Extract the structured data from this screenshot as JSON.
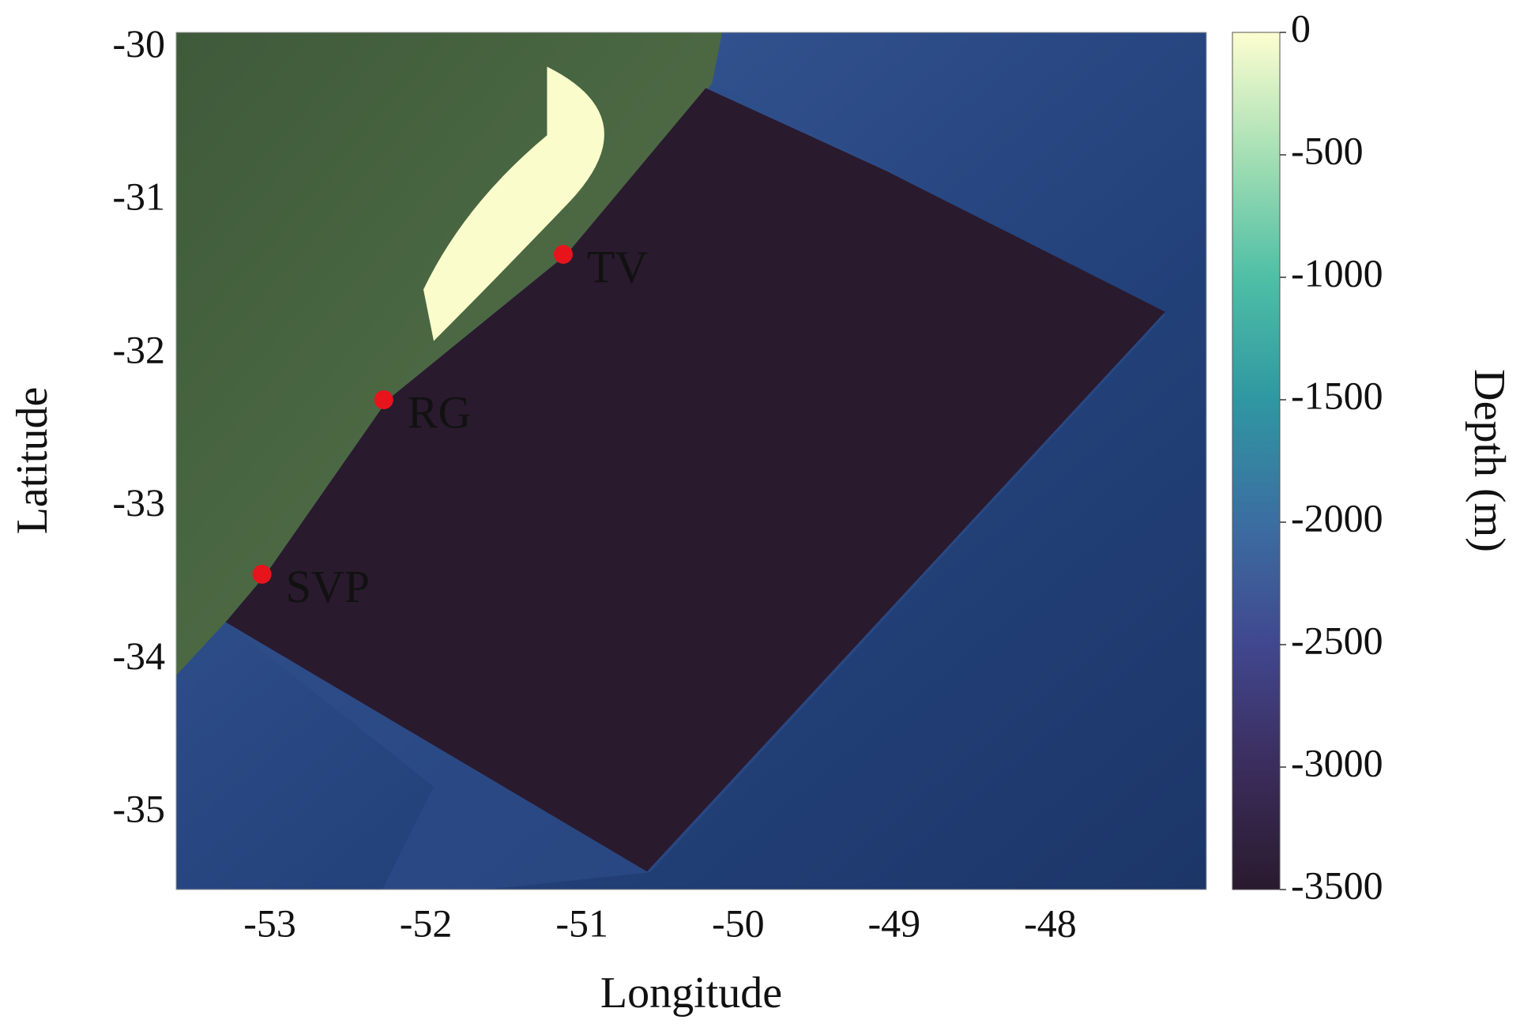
{
  "map": {
    "xlabel": "Longitude",
    "ylabel": "Latitude",
    "xlim": [
      -53.6,
      -47.0
    ],
    "ylim": [
      -35.5,
      -29.9
    ],
    "xticks": [
      -53,
      -52,
      -51,
      -50,
      -49,
      -48
    ],
    "yticks": [
      -30,
      -31,
      -32,
      -33,
      -34,
      -35
    ],
    "colorbar": {
      "label": "Depth (m)",
      "lim": [
        -3500,
        0
      ],
      "ticks": [
        0,
        -500,
        -1000,
        -1500,
        -2000,
        -2500,
        -3000,
        -3500
      ],
      "colors": [
        "#2a1a2e",
        "#3b2d5c",
        "#41478f",
        "#3b6ea1",
        "#2f97a1",
        "#4fbfa6",
        "#a5dfb4",
        "#fdfed0"
      ]
    },
    "stations": [
      {
        "name": "TV",
        "lon": -51.12,
        "lat": -31.35
      },
      {
        "name": "RG",
        "lon": -52.27,
        "lat": -32.3
      },
      {
        "name": "SVP",
        "lon": -53.05,
        "lat": -33.44
      }
    ],
    "station_color": "#e8141b"
  }
}
